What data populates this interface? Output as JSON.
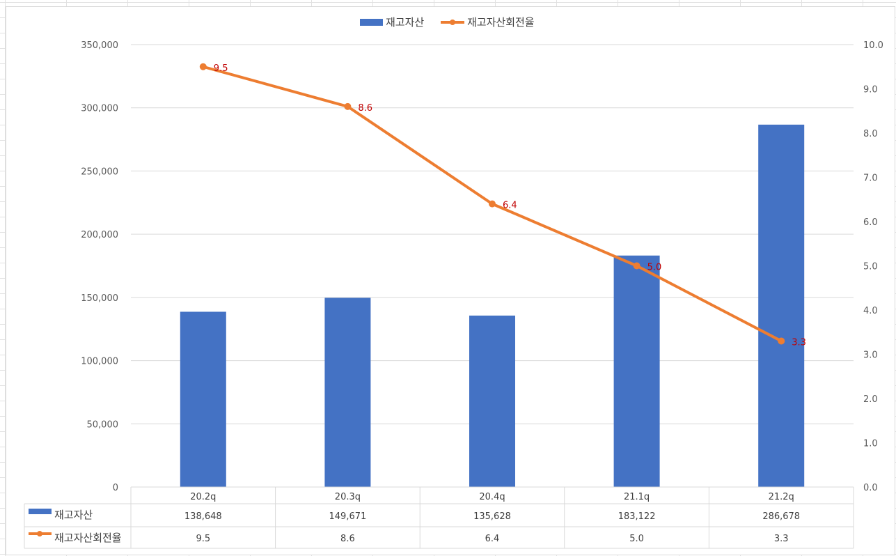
{
  "chart_data": {
    "type": "bar",
    "categories": [
      "20.2q",
      "20.3q",
      "20.4q",
      "21.1q",
      "21.2q"
    ],
    "series": [
      {
        "name": "재고자산",
        "type": "bar",
        "axis": "left",
        "color": "#4472C4",
        "values": [
          138648,
          149671,
          135628,
          183122,
          286678
        ],
        "value_labels": [
          "138,648",
          "149,671",
          "135,628",
          "183,122",
          "286,678"
        ]
      },
      {
        "name": "재고자산회전율",
        "type": "line",
        "axis": "right",
        "color": "#ED7D31",
        "values": [
          9.5,
          8.6,
          6.4,
          5.0,
          3.3
        ],
        "value_labels": [
          "9.5",
          "8.6",
          "6.4",
          "5.0",
          "3.3"
        ],
        "data_label_color": "#C00000"
      }
    ],
    "y_left": {
      "ylim": [
        0,
        350000
      ],
      "ticks": [
        0,
        50000,
        100000,
        150000,
        200000,
        250000,
        300000,
        350000
      ],
      "tick_labels": [
        "0",
        "50,000",
        "100,000",
        "150,000",
        "200,000",
        "250,000",
        "300,000",
        "350,000"
      ]
    },
    "y_right": {
      "ylim": [
        0,
        10
      ],
      "ticks": [
        0,
        1,
        2,
        3,
        4,
        5,
        6,
        7,
        8,
        9,
        10
      ],
      "tick_labels": [
        "0.0",
        "1.0",
        "2.0",
        "3.0",
        "4.0",
        "5.0",
        "6.0",
        "7.0",
        "8.0",
        "9.0",
        "10.0"
      ]
    },
    "legend_position": "top",
    "data_table": true,
    "grid": true
  }
}
